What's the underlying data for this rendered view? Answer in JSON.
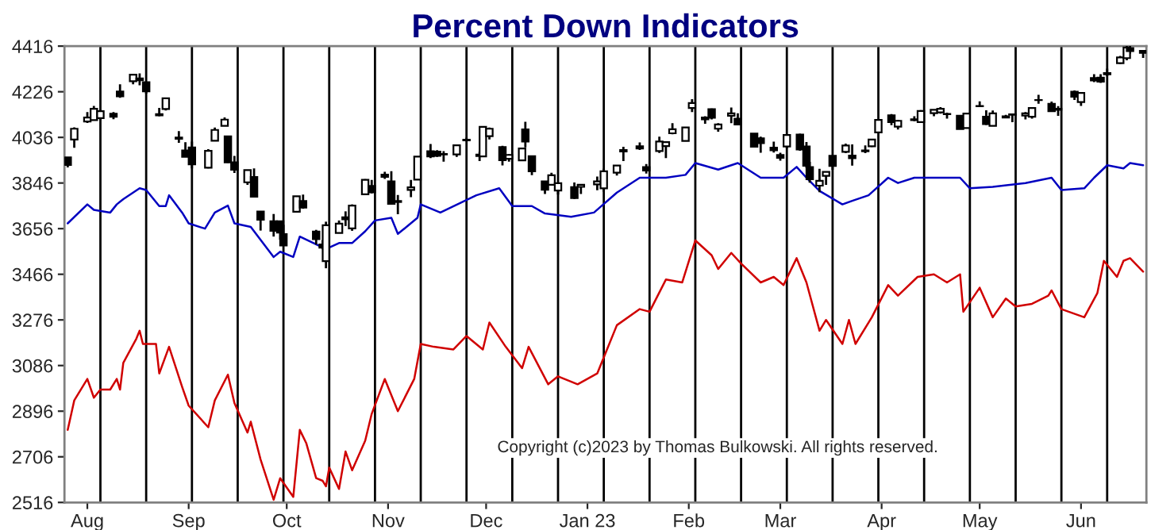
{
  "chart_data": {
    "type": "candlestick",
    "title": "Percent Down Indicators",
    "x": [
      "2022-07-26",
      "2022-07-28",
      "2022-08-01",
      "2022-08-03",
      "2022-08-05",
      "2022-08-09",
      "2022-08-11",
      "2022-08-15",
      "2022-08-17",
      "2022-08-19",
      "2022-08-23",
      "2022-08-25",
      "2022-08-29",
      "2022-08-31",
      "2022-09-02",
      "2022-09-07",
      "2022-09-09",
      "2022-09-12",
      "2022-09-13",
      "2022-09-15",
      "2022-09-19",
      "2022-09-21",
      "2022-09-23",
      "2022-09-27",
      "2022-09-29",
      "2022-09-30",
      "2022-10-04",
      "2022-10-06",
      "2022-10-10",
      "2022-10-12",
      "2022-10-13",
      "2022-10-17",
      "2022-10-19",
      "2022-10-21",
      "2022-10-25",
      "2022-10-27",
      "2022-10-31",
      "2022-11-02",
      "2022-11-04",
      "2022-11-08",
      "2022-11-10",
      "2022-11-14",
      "2022-11-16",
      "2022-11-18",
      "2022-11-22",
      "2022-11-25",
      "2022-11-29",
      "2022-11-30",
      "2022-12-02",
      "2022-12-06",
      "2022-12-08",
      "2022-12-12",
      "2022-12-13",
      "2022-12-15",
      "2022-12-19",
      "2022-12-21",
      "2022-12-23",
      "2022-12-28",
      "2022-12-30",
      "2023-01-04",
      "2023-01-06",
      "2023-01-10",
      "2023-01-12",
      "2023-01-17",
      "2023-01-19",
      "2023-01-23",
      "2023-01-25",
      "2023-01-27",
      "2023-01-31",
      "2023-02-02",
      "2023-02-06",
      "2023-02-08",
      "2023-02-10",
      "2023-02-14",
      "2023-02-16",
      "2023-02-21",
      "2023-02-23",
      "2023-02-27",
      "2023-03-01",
      "2023-03-03",
      "2023-03-07",
      "2023-03-09",
      "2023-03-10",
      "2023-03-13",
      "2023-03-15",
      "2023-03-17",
      "2023-03-21",
      "2023-03-23",
      "2023-03-27",
      "2023-03-29",
      "2023-03-31",
      "2023-04-04",
      "2023-04-06",
      "2023-04-11",
      "2023-04-13",
      "2023-04-17",
      "2023-04-19",
      "2023-04-21",
      "2023-04-25",
      "2023-04-27",
      "2023-05-01",
      "2023-05-03",
      "2023-05-05",
      "2023-05-09",
      "2023-05-11",
      "2023-05-15",
      "2023-05-17",
      "2023-05-19",
      "2023-05-23",
      "2023-05-25",
      "2023-05-30",
      "2023-06-01",
      "2023-06-05",
      "2023-06-07",
      "2023-06-09",
      "2023-06-13",
      "2023-06-15",
      "2023-06-16",
      "2023-06-20"
    ],
    "ohlc": [
      [
        3953,
        3954,
        3911,
        3921
      ],
      [
        4027,
        4078,
        3993,
        4072
      ],
      [
        4102,
        4141,
        4096,
        4119
      ],
      [
        4108,
        4167,
        4107,
        4155
      ],
      [
        4116,
        4151,
        4108,
        4145
      ],
      [
        4134,
        4141,
        4112,
        4122
      ],
      [
        4227,
        4257,
        4201,
        4207
      ],
      [
        4270,
        4301,
        4257,
        4297
      ],
      [
        4281,
        4302,
        4253,
        4274
      ],
      [
        4266,
        4266,
        4218,
        4228
      ],
      [
        4133,
        4159,
        4124,
        4128
      ],
      [
        4154,
        4200,
        4148,
        4199
      ],
      [
        4035,
        4062,
        4013,
        4030
      ],
      [
        3982,
        4016,
        3955,
        3955
      ],
      [
        3994,
        4018,
        3907,
        3924
      ],
      [
        3910,
        3987,
        3907,
        3980
      ],
      [
        4022,
        4077,
        4022,
        4067
      ],
      [
        4084,
        4119,
        4084,
        4110
      ],
      [
        4040,
        4040,
        3930,
        3932
      ],
      [
        3932,
        3959,
        3888,
        3901
      ],
      [
        3849,
        3900,
        3838,
        3900
      ],
      [
        3871,
        3907,
        3789,
        3789
      ],
      [
        3727,
        3727,
        3648,
        3693
      ],
      [
        3687,
        3717,
        3623,
        3647
      ],
      [
        3687,
        3687,
        3610,
        3640
      ],
      [
        3633,
        3672,
        3584,
        3586
      ],
      [
        3726,
        3791,
        3726,
        3791
      ],
      [
        3771,
        3798,
        3739,
        3744
      ],
      [
        3644,
        3651,
        3590,
        3612
      ],
      [
        3590,
        3608,
        3570,
        3577
      ],
      [
        3521,
        3685,
        3491,
        3670
      ],
      [
        3638,
        3690,
        3638,
        3677
      ],
      [
        3703,
        3728,
        3667,
        3695
      ],
      [
        3657,
        3757,
        3647,
        3752
      ],
      [
        3799,
        3862,
        3799,
        3859
      ],
      [
        3834,
        3859,
        3803,
        3807
      ],
      [
        3881,
        3893,
        3863,
        3872
      ],
      [
        3853,
        3895,
        3758,
        3759
      ],
      [
        3767,
        3796,
        3716,
        3771
      ],
      [
        3817,
        3859,
        3787,
        3828
      ],
      [
        3860,
        3956,
        3860,
        3956
      ],
      [
        3978,
        4008,
        3950,
        3957
      ],
      [
        3977,
        3983,
        3955,
        3959
      ],
      [
        3967,
        3979,
        3935,
        3965
      ],
      [
        3965,
        4003,
        3955,
        4003
      ],
      [
        4024,
        4035,
        4019,
        4026
      ],
      [
        3964,
        3976,
        3937,
        3958
      ],
      [
        3957,
        4081,
        3957,
        4080
      ],
      [
        4041,
        4077,
        4027,
        4072
      ],
      [
        3996,
        4001,
        3919,
        3941
      ],
      [
        3947,
        3966,
        3935,
        3963
      ],
      [
        3940,
        3990,
        3937,
        3990
      ],
      [
        4069,
        4101,
        3994,
        4019
      ],
      [
        3958,
        3959,
        3879,
        3895
      ],
      [
        3853,
        3854,
        3800,
        3818
      ],
      [
        3839,
        3889,
        3839,
        3878
      ],
      [
        3815,
        3845,
        3798,
        3845
      ],
      [
        3829,
        3848,
        3780,
        3783
      ],
      [
        3830,
        3840,
        3800,
        3839
      ],
      [
        3840,
        3873,
        3816,
        3853
      ],
      [
        3824,
        3906,
        3809,
        3895
      ],
      [
        3889,
        3919,
        3877,
        3919
      ],
      [
        3977,
        3997,
        3937,
        3983
      ],
      [
        3999,
        4015,
        3984,
        3990
      ],
      [
        3912,
        3925,
        3885,
        3898
      ],
      [
        3979,
        4039,
        3971,
        4019
      ],
      [
        4000,
        4020,
        3950,
        4016
      ],
      [
        4053,
        4095,
        4049,
        4070
      ],
      [
        4021,
        4077,
        4020,
        4077
      ],
      [
        4158,
        4195,
        4141,
        4179
      ],
      [
        4119,
        4124,
        4093,
        4111
      ],
      [
        4153,
        4156,
        4111,
        4118
      ],
      [
        4072,
        4095,
        4060,
        4090
      ],
      [
        4126,
        4160,
        4095,
        4136
      ],
      [
        4114,
        4136,
        4089,
        4090
      ],
      [
        4052,
        4052,
        3995,
        3997
      ],
      [
        4032,
        4039,
        3972,
        4012
      ],
      [
        3993,
        4018,
        3973,
        3982
      ],
      [
        3963,
        3972,
        3939,
        3951
      ],
      [
        3998,
        4048,
        3990,
        4046
      ],
      [
        4048,
        4051,
        3980,
        3986
      ],
      [
        3998,
        4017,
        3909,
        3918
      ],
      [
        3912,
        3934,
        3847,
        3862
      ],
      [
        3835,
        3905,
        3808,
        3855
      ],
      [
        3876,
        3894,
        3838,
        3892
      ],
      [
        3959,
        3959,
        3901,
        3917
      ],
      [
        3976,
        4010,
        3970,
        4002
      ],
      [
        3960,
        4007,
        3918,
        3949
      ],
      [
        3982,
        4003,
        3970,
        3978
      ],
      [
        3999,
        4030,
        3996,
        4027
      ],
      [
        4057,
        4110,
        4056,
        4109
      ],
      [
        4128,
        4133,
        4087,
        4100
      ],
      [
        4081,
        4108,
        4069,
        4105
      ],
      [
        4111,
        4124,
        4103,
        4108
      ],
      [
        4100,
        4150,
        4100,
        4146
      ],
      [
        4137,
        4152,
        4124,
        4151
      ],
      [
        4140,
        4162,
        4135,
        4155
      ],
      [
        4133,
        4139,
        4114,
        4133
      ],
      [
        4126,
        4127,
        4071,
        4071
      ],
      [
        4075,
        4138,
        4075,
        4135
      ],
      [
        4166,
        4186,
        4164,
        4167
      ],
      [
        4122,
        4149,
        4088,
        4091
      ],
      [
        4084,
        4148,
        4084,
        4136
      ],
      [
        4124,
        4130,
        4116,
        4119
      ],
      [
        4132,
        4133,
        4099,
        4130
      ],
      [
        4127,
        4141,
        4111,
        4136
      ],
      [
        4122,
        4159,
        4114,
        4158
      ],
      [
        4191,
        4213,
        4176,
        4191
      ],
      [
        4176,
        4185,
        4142,
        4145
      ],
      [
        4155,
        4166,
        4126,
        4151
      ],
      [
        4226,
        4231,
        4192,
        4205
      ],
      [
        4183,
        4222,
        4167,
        4221
      ],
      [
        4283,
        4299,
        4266,
        4273
      ],
      [
        4285,
        4299,
        4263,
        4268
      ],
      [
        4304,
        4322,
        4291,
        4299
      ],
      [
        4345,
        4375,
        4342,
        4369
      ],
      [
        4366,
        4416,
        4357,
        4410
      ],
      [
        4408,
        4416,
        4385,
        4395
      ],
      [
        4396,
        4400,
        4367,
        4388
      ]
    ],
    "series": [
      {
        "type": "line",
        "color": "#0000c0",
        "x": [
          "2022-07-26",
          "2022-08-01",
          "2022-08-03",
          "2022-08-08",
          "2022-08-10",
          "2022-08-12",
          "2022-08-17",
          "2022-08-19",
          "2022-08-23",
          "2022-08-25",
          "2022-08-26",
          "2022-08-30",
          "2022-09-01",
          "2022-09-06",
          "2022-09-09",
          "2022-09-13",
          "2022-09-15",
          "2022-09-20",
          "2022-09-27",
          "2022-09-29",
          "2022-10-03",
          "2022-10-05",
          "2022-10-13",
          "2022-10-17",
          "2022-10-21",
          "2022-10-25",
          "2022-10-28",
          "2022-11-02",
          "2022-11-04",
          "2022-11-10",
          "2022-11-11",
          "2022-11-17",
          "2022-11-28",
          "2022-12-05",
          "2022-12-09",
          "2022-12-15",
          "2022-12-19",
          "2022-12-27",
          "2023-01-03",
          "2023-01-10",
          "2023-01-17",
          "2023-01-25",
          "2023-01-31",
          "2023-02-03",
          "2023-02-10",
          "2023-02-16",
          "2023-02-23",
          "2023-03-02",
          "2023-03-06",
          "2023-03-09",
          "2023-03-13",
          "2023-03-20",
          "2023-03-23",
          "2023-03-28",
          "2023-04-03",
          "2023-04-06",
          "2023-04-11",
          "2023-04-25",
          "2023-04-28",
          "2023-05-05",
          "2023-05-15",
          "2023-05-23",
          "2023-05-26",
          "2023-06-02",
          "2023-06-05",
          "2023-06-09",
          "2023-06-14",
          "2023-06-16",
          "2023-06-20"
        ],
        "values": [
          3678,
          3757,
          3734,
          3723,
          3757,
          3779,
          3824,
          3817,
          3750,
          3750,
          3795,
          3723,
          3678,
          3656,
          3723,
          3752,
          3678,
          3663,
          3538,
          3560,
          3538,
          3623,
          3571,
          3596,
          3596,
          3645,
          3690,
          3701,
          3634,
          3701,
          3757,
          3723,
          3795,
          3824,
          3750,
          3750,
          3719,
          3705,
          3723,
          3806,
          3868,
          3868,
          3880,
          3929,
          3902,
          3929,
          3868,
          3868,
          3913,
          3868,
          3813,
          3757,
          3772,
          3795,
          3868,
          3846,
          3868,
          3868,
          3824,
          3830,
          3846,
          3868,
          3817,
          3824,
          3868,
          3920,
          3907,
          3929,
          3920
        ]
      },
      {
        "type": "line",
        "color": "#d00000",
        "x": [
          "2022-07-26",
          "2022-07-28",
          "2022-08-01",
          "2022-08-03",
          "2022-08-05",
          "2022-08-08",
          "2022-08-10",
          "2022-08-11",
          "2022-08-12",
          "2022-08-16",
          "2022-08-17",
          "2022-08-18",
          "2022-08-22",
          "2022-08-23",
          "2022-08-26",
          "2022-08-30",
          "2022-09-01",
          "2022-09-07",
          "2022-09-09",
          "2022-09-13",
          "2022-09-15",
          "2022-09-19",
          "2022-09-20",
          "2022-09-23",
          "2022-09-27",
          "2022-09-29",
          "2022-10-03",
          "2022-10-05",
          "2022-10-07",
          "2022-10-10",
          "2022-10-12",
          "2022-10-13",
          "2022-10-14",
          "2022-10-17",
          "2022-10-19",
          "2022-10-21",
          "2022-10-25",
          "2022-10-27",
          "2022-10-31",
          "2022-11-04",
          "2022-11-09",
          "2022-11-11",
          "2022-11-15",
          "2022-11-21",
          "2022-11-25",
          "2022-11-30",
          "2022-12-02",
          "2022-12-07",
          "2022-12-12",
          "2022-12-14",
          "2022-12-20",
          "2022-12-23",
          "2022-12-29",
          "2023-01-04",
          "2023-01-10",
          "2023-01-17",
          "2023-01-20",
          "2023-01-25",
          "2023-01-30",
          "2023-02-03",
          "2023-02-08",
          "2023-02-10",
          "2023-02-14",
          "2023-02-17",
          "2023-02-23",
          "2023-02-27",
          "2023-03-02",
          "2023-03-06",
          "2023-03-09",
          "2023-03-13",
          "2023-03-15",
          "2023-03-20",
          "2023-03-22",
          "2023-03-24",
          "2023-03-29",
          "2023-04-03",
          "2023-04-06",
          "2023-04-12",
          "2023-04-17",
          "2023-04-21",
          "2023-04-25",
          "2023-04-26",
          "2023-05-01",
          "2023-05-05",
          "2023-05-09",
          "2023-05-12",
          "2023-05-17",
          "2023-05-22",
          "2023-05-23",
          "2023-05-26",
          "2023-06-02",
          "2023-06-06",
          "2023-06-08",
          "2023-06-12",
          "2023-06-14",
          "2023-06-16",
          "2023-06-20"
        ],
        "values": [
          2818,
          2941,
          3030,
          2952,
          2986,
          2986,
          3030,
          2986,
          3097,
          3198,
          3231,
          3176,
          3176,
          3053,
          3164,
          2997,
          2919,
          2829,
          2941,
          3048,
          2930,
          2807,
          2852,
          2695,
          2527,
          2617,
          2539,
          2818,
          2762,
          2617,
          2606,
          2583,
          2661,
          2572,
          2728,
          2650,
          2773,
          2885,
          3030,
          2896,
          3030,
          3176,
          3164,
          3153,
          3209,
          3153,
          3265,
          3164,
          3075,
          3164,
          3008,
          3041,
          3008,
          3053,
          3254,
          3321,
          3310,
          3444,
          3432,
          3607,
          3545,
          3488,
          3555,
          3511,
          3432,
          3455,
          3421,
          3533,
          3432,
          3231,
          3276,
          3176,
          3276,
          3176,
          3287,
          3421,
          3377,
          3455,
          3466,
          3432,
          3466,
          3310,
          3410,
          3287,
          3365,
          3332,
          3343,
          3377,
          3399,
          3321,
          3287,
          3388,
          3522,
          3455,
          3522,
          3533,
          3477
        ]
      }
    ],
    "xlim": [
      "2022-07-25",
      "2023-06-21"
    ],
    "xticks": [
      {
        "value": "2022-08-01",
        "label": "Aug"
      },
      {
        "value": "2022-09-01",
        "label": "Sep"
      },
      {
        "value": "2022-10-01",
        "label": "Oct"
      },
      {
        "value": "2022-11-01",
        "label": "Nov"
      },
      {
        "value": "2022-12-01",
        "label": "Dec"
      },
      {
        "value": "2023-01-01",
        "label": "Jan 23"
      },
      {
        "value": "2023-02-01",
        "label": "Feb"
      },
      {
        "value": "2023-03-01",
        "label": "Mar"
      },
      {
        "value": "2023-04-01",
        "label": "Apr"
      },
      {
        "value": "2023-05-01",
        "label": "May"
      },
      {
        "value": "2023-06-01",
        "label": "Jun"
      }
    ],
    "ylim": [
      2516,
      4416
    ],
    "yticks": [
      2516,
      2706,
      2896,
      3086,
      3276,
      3466,
      3656,
      3846,
      4036,
      4226,
      4416
    ],
    "ref_lines": [
      {
        "axis": "x",
        "value": "2022-08-05",
        "color": "#000000"
      },
      {
        "axis": "x",
        "value": "2022-08-19",
        "color": "#000000"
      },
      {
        "axis": "x",
        "value": "2022-09-02",
        "color": "#000000"
      },
      {
        "axis": "x",
        "value": "2022-09-16",
        "color": "#000000"
      },
      {
        "axis": "x",
        "value": "2022-09-30",
        "color": "#000000"
      },
      {
        "axis": "x",
        "value": "2022-10-14",
        "color": "#000000"
      },
      {
        "axis": "x",
        "value": "2022-10-28",
        "color": "#000000"
      },
      {
        "axis": "x",
        "value": "2022-11-11",
        "color": "#000000"
      },
      {
        "axis": "x",
        "value": "2022-11-25",
        "color": "#000000"
      },
      {
        "axis": "x",
        "value": "2022-12-09",
        "color": "#000000"
      },
      {
        "axis": "x",
        "value": "2022-12-23",
        "color": "#000000"
      },
      {
        "axis": "x",
        "value": "2023-01-06",
        "color": "#000000"
      },
      {
        "axis": "x",
        "value": "2023-01-20",
        "color": "#000000"
      },
      {
        "axis": "x",
        "value": "2023-02-03",
        "color": "#000000"
      },
      {
        "axis": "x",
        "value": "2023-02-17",
        "color": "#000000"
      },
      {
        "axis": "x",
        "value": "2023-03-03",
        "color": "#000000"
      },
      {
        "axis": "x",
        "value": "2023-03-17",
        "color": "#000000"
      },
      {
        "axis": "x",
        "value": "2023-03-31",
        "color": "#000000"
      },
      {
        "axis": "x",
        "value": "2023-04-14",
        "color": "#000000"
      },
      {
        "axis": "x",
        "value": "2023-04-28",
        "color": "#000000"
      },
      {
        "axis": "x",
        "value": "2023-05-12",
        "color": "#000000"
      },
      {
        "axis": "x",
        "value": "2023-05-26",
        "color": "#000000"
      },
      {
        "axis": "x",
        "value": "2023-06-09",
        "color": "#000000"
      }
    ],
    "annotations": [
      "Copyright (c)2023 by Thomas Bulkowski. All rights reserved."
    ]
  }
}
